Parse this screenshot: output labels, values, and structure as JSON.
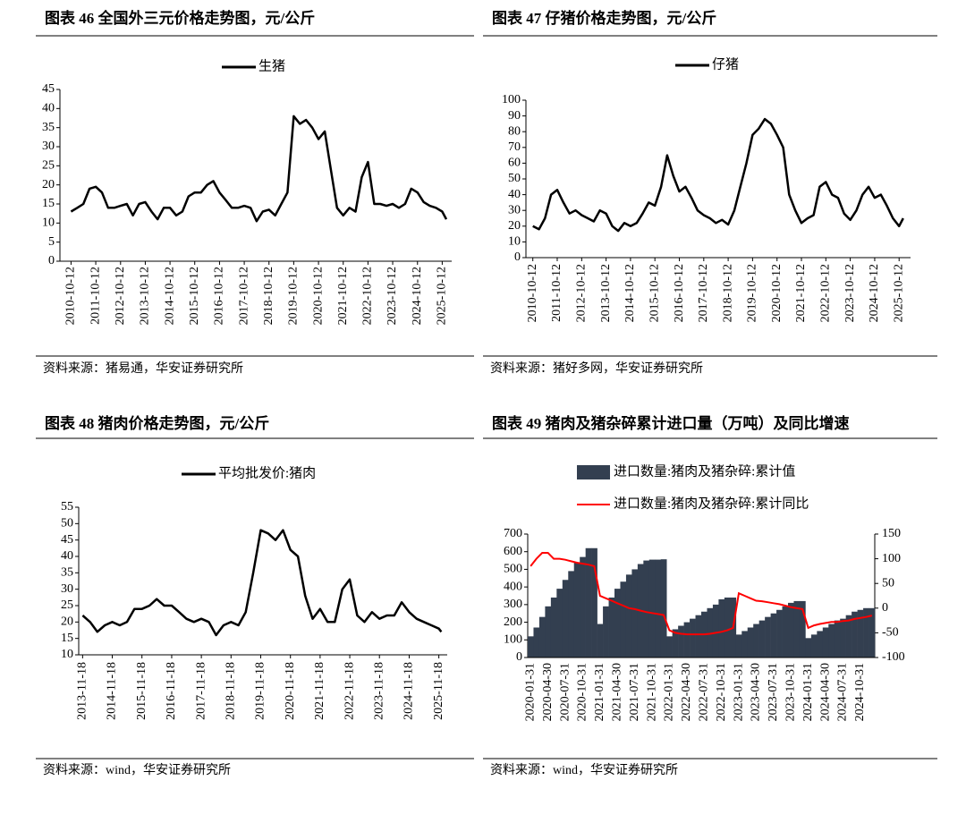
{
  "chart_data": [
    {
      "type": "line",
      "title": "图表 46 全国外三元价格走势图，元/公斤",
      "source": "资料来源：猪易通，华安证券研究所",
      "xlim": [
        "2010-05-01",
        "2026-03-01"
      ],
      "xticks": [
        "2010-10-12",
        "2011-10-12",
        "2012-10-12",
        "2013-10-12",
        "2014-10-12",
        "2015-10-12",
        "2016-10-12",
        "2017-10-12",
        "2018-10-12",
        "2019-10-12",
        "2020-10-12",
        "2021-10-12",
        "2022-10-12",
        "2023-10-12",
        "2024-10-12",
        "2025-10-12"
      ],
      "ylim": [
        0,
        45
      ],
      "yticks": [
        0,
        5,
        10,
        15,
        20,
        25,
        30,
        35,
        40,
        45
      ],
      "x": [
        "2010-10-12",
        "2011-01-12",
        "2011-04-12",
        "2011-07-12",
        "2011-10-12",
        "2012-01-12",
        "2012-04-12",
        "2012-07-12",
        "2012-10-12",
        "2013-01-12",
        "2013-04-12",
        "2013-07-12",
        "2013-10-12",
        "2014-01-12",
        "2014-04-12",
        "2014-07-12",
        "2014-10-12",
        "2015-01-12",
        "2015-04-12",
        "2015-07-12",
        "2015-10-12",
        "2016-01-12",
        "2016-04-12",
        "2016-07-12",
        "2016-10-12",
        "2017-01-12",
        "2017-04-12",
        "2017-07-12",
        "2017-10-12",
        "2018-01-12",
        "2018-04-12",
        "2018-07-12",
        "2018-10-12",
        "2019-01-12",
        "2019-04-12",
        "2019-07-12",
        "2019-10-12",
        "2020-01-12",
        "2020-04-12",
        "2020-07-12",
        "2020-10-12",
        "2021-01-12",
        "2021-04-12",
        "2021-07-12",
        "2021-10-12",
        "2022-01-12",
        "2022-04-12",
        "2022-07-12",
        "2022-10-12",
        "2023-01-12",
        "2023-04-12",
        "2023-07-12",
        "2023-10-12",
        "2024-01-12",
        "2024-04-12",
        "2024-07-12",
        "2024-10-12",
        "2025-01-12",
        "2025-04-12",
        "2025-07-12",
        "2025-10-12",
        "2025-12-12"
      ],
      "series": [
        {
          "name": "生猪",
          "color": "#000000",
          "values": [
            13,
            14,
            15,
            19,
            19.5,
            18,
            14,
            14,
            14.5,
            15,
            12,
            15,
            15.5,
            13,
            11,
            14,
            14,
            12,
            13,
            17,
            18,
            18,
            20,
            21,
            18,
            16,
            14,
            14,
            14.5,
            14,
            10.5,
            13,
            13.5,
            12,
            15,
            18,
            38,
            36,
            37,
            35,
            32,
            34,
            24,
            14,
            12,
            14,
            13,
            22,
            26,
            15,
            15,
            14.5,
            15,
            14,
            15,
            19,
            18,
            15.5,
            14.5,
            14,
            13,
            11
          ]
        }
      ]
    },
    {
      "type": "line",
      "title": "图表 47 仔猪价格走势图，元/公斤",
      "source": "资料来源：猪好多网，华安证券研究所",
      "xlim": [
        "2010-07-01",
        "2026-04-01"
      ],
      "xticks": [
        "2010-10-12",
        "2011-10-12",
        "2012-10-12",
        "2013-10-12",
        "2014-10-12",
        "2015-10-12",
        "2016-10-12",
        "2017-10-12",
        "2018-10-12",
        "2019-10-12",
        "2020-10-12",
        "2021-10-12",
        "2022-10-12",
        "2023-10-12",
        "2024-10-12",
        "2025-10-12"
      ],
      "ylim": [
        0,
        100
      ],
      "yticks": [
        0,
        10,
        20,
        30,
        40,
        50,
        60,
        70,
        80,
        90,
        100
      ],
      "x": [
        "2010-10-12",
        "2011-01-12",
        "2011-04-12",
        "2011-07-12",
        "2011-10-12",
        "2012-01-12",
        "2012-04-12",
        "2012-07-12",
        "2012-10-12",
        "2013-01-12",
        "2013-04-12",
        "2013-07-12",
        "2013-10-12",
        "2014-01-12",
        "2014-04-12",
        "2014-07-12",
        "2014-10-12",
        "2015-01-12",
        "2015-04-12",
        "2015-07-12",
        "2015-10-12",
        "2016-01-12",
        "2016-04-12",
        "2016-07-12",
        "2016-10-12",
        "2017-01-12",
        "2017-04-12",
        "2017-07-12",
        "2017-10-12",
        "2018-01-12",
        "2018-04-12",
        "2018-07-12",
        "2018-10-12",
        "2019-01-12",
        "2019-04-12",
        "2019-07-12",
        "2019-10-12",
        "2020-01-12",
        "2020-04-12",
        "2020-07-12",
        "2020-10-12",
        "2021-01-12",
        "2021-04-12",
        "2021-07-12",
        "2021-10-12",
        "2022-01-12",
        "2022-04-12",
        "2022-07-12",
        "2022-10-12",
        "2023-01-12",
        "2023-04-12",
        "2023-07-12",
        "2023-10-12",
        "2024-01-12",
        "2024-04-12",
        "2024-07-12",
        "2024-10-12",
        "2025-01-12",
        "2025-04-12",
        "2025-07-12",
        "2025-10-12",
        "2025-12-12"
      ],
      "series": [
        {
          "name": "仔猪",
          "color": "#000000",
          "values": [
            20,
            18,
            25,
            40,
            43,
            35,
            28,
            30,
            27,
            25,
            23,
            30,
            28,
            20,
            17,
            22,
            20,
            22,
            28,
            35,
            33,
            45,
            65,
            52,
            42,
            45,
            38,
            30,
            27,
            25,
            22,
            24,
            21,
            30,
            45,
            60,
            78,
            82,
            88,
            85,
            78,
            70,
            40,
            30,
            22,
            25,
            27,
            45,
            48,
            40,
            38,
            28,
            24,
            30,
            40,
            45,
            38,
            40,
            33,
            25,
            20,
            25
          ]
        }
      ]
    },
    {
      "type": "line",
      "title": "图表 48 猪肉价格走势图，元/公斤",
      "source": "资料来源：wind，华安证券研究所",
      "xlim": [
        "2013-10-01",
        "2026-03-01"
      ],
      "xticks": [
        "2013-11-18",
        "2014-11-18",
        "2015-11-18",
        "2016-11-18",
        "2017-11-18",
        "2018-11-18",
        "2019-11-18",
        "2020-11-18",
        "2021-11-18",
        "2022-11-18",
        "2023-11-18",
        "2024-11-18",
        "2025-11-18"
      ],
      "ylim": [
        10,
        55
      ],
      "yticks": [
        10,
        15,
        20,
        25,
        30,
        35,
        40,
        45,
        50,
        55
      ],
      "x": [
        "2013-11-18",
        "2014-02-18",
        "2014-05-18",
        "2014-08-18",
        "2014-11-18",
        "2015-02-18",
        "2015-05-18",
        "2015-08-18",
        "2015-11-18",
        "2016-02-18",
        "2016-05-18",
        "2016-08-18",
        "2016-11-18",
        "2017-02-18",
        "2017-05-18",
        "2017-08-18",
        "2017-11-18",
        "2018-02-18",
        "2018-05-18",
        "2018-08-18",
        "2018-11-18",
        "2019-02-18",
        "2019-05-18",
        "2019-08-18",
        "2019-11-18",
        "2020-02-18",
        "2020-05-18",
        "2020-08-18",
        "2020-11-18",
        "2021-02-18",
        "2021-05-18",
        "2021-08-18",
        "2021-11-18",
        "2022-02-18",
        "2022-05-18",
        "2022-08-18",
        "2022-11-18",
        "2023-02-18",
        "2023-05-18",
        "2023-08-18",
        "2023-11-18",
        "2024-02-18",
        "2024-05-18",
        "2024-08-18",
        "2024-11-18",
        "2025-02-18",
        "2025-05-18",
        "2025-08-18",
        "2025-11-18",
        "2025-12-18"
      ],
      "series": [
        {
          "name": "平均批发价:猪肉",
          "color": "#000000",
          "values": [
            22,
            20,
            17,
            19,
            20,
            19,
            20,
            24,
            24,
            25,
            27,
            25,
            25,
            23,
            21,
            20,
            21,
            20,
            16,
            19,
            20,
            19,
            23,
            35,
            48,
            47,
            45,
            48,
            42,
            40,
            28,
            21,
            24,
            20,
            20,
            30,
            33,
            22,
            20,
            23,
            21,
            22,
            22,
            26,
            23,
            21,
            20,
            19,
            18,
            17
          ]
        }
      ]
    },
    {
      "type": "bar",
      "title": "图表 49 猪肉及猪杂碎累计进口量（万吨）及同比增速",
      "source": "资料来源：wind，华安证券研究所",
      "categories": [
        "2020-01-31",
        null,
        null,
        "2020-04-30",
        null,
        null,
        "2020-07-31",
        null,
        null,
        "2020-10-31",
        null,
        null,
        "2021-01-31",
        null,
        null,
        "2021-04-30",
        null,
        null,
        "2021-07-31",
        null,
        null,
        "2021-10-31",
        null,
        null,
        "2022-01-31",
        null,
        null,
        "2022-04-30",
        null,
        null,
        "2022-07-31",
        null,
        null,
        "2022-10-31",
        null,
        null,
        "2023-01-31",
        null,
        null,
        "2023-04-30",
        null,
        null,
        "2023-07-31",
        null,
        null,
        "2023-10-31",
        null,
        null,
        "2024-01-31",
        null,
        null,
        "2024-04-30",
        null,
        null,
        "2024-07-31",
        null,
        null,
        "2024-10-31",
        null,
        null
      ],
      "ylim": [
        0,
        700
      ],
      "yticks": [
        0,
        100,
        200,
        300,
        400,
        500,
        600,
        700
      ],
      "y2lim": [
        -100,
        150
      ],
      "y2ticks": [
        -100,
        -50,
        0,
        50,
        100,
        150
      ],
      "series": [
        {
          "name": "进口数量:猪肉及猪杂碎:累计值",
          "color": "#333f50",
          "type": "bar",
          "values": [
            120,
            170,
            230,
            290,
            340,
            390,
            440,
            490,
            540,
            570,
            620,
            620,
            190,
            290,
            340,
            390,
            430,
            470,
            500,
            530,
            550,
            555,
            555,
            557,
            120,
            160,
            180,
            200,
            220,
            240,
            260,
            280,
            300,
            330,
            340,
            340,
            130,
            150,
            170,
            190,
            210,
            230,
            250,
            270,
            290,
            310,
            320,
            320,
            110,
            130,
            150,
            170,
            190,
            210,
            220,
            240,
            260,
            270,
            280,
            280
          ]
        },
        {
          "name": "进口数量:猪肉及猪杂碎:累计同比",
          "color": "#ff0000",
          "type": "line",
          "axis": "y2",
          "values": [
            85,
            100,
            112,
            112,
            100,
            100,
            98,
            95,
            92,
            90,
            88,
            85,
            25,
            20,
            15,
            10,
            5,
            0,
            -2,
            -5,
            -8,
            -10,
            -12,
            -14,
            -45,
            -50,
            -52,
            -53,
            -53,
            -53,
            -53,
            -52,
            -50,
            -48,
            -45,
            -40,
            30,
            25,
            20,
            15,
            14,
            12,
            10,
            8,
            5,
            2,
            0,
            -2,
            -40,
            -35,
            -32,
            -30,
            -28,
            -28,
            -26,
            -25,
            -22,
            -20,
            -18,
            -15
          ]
        }
      ]
    }
  ]
}
